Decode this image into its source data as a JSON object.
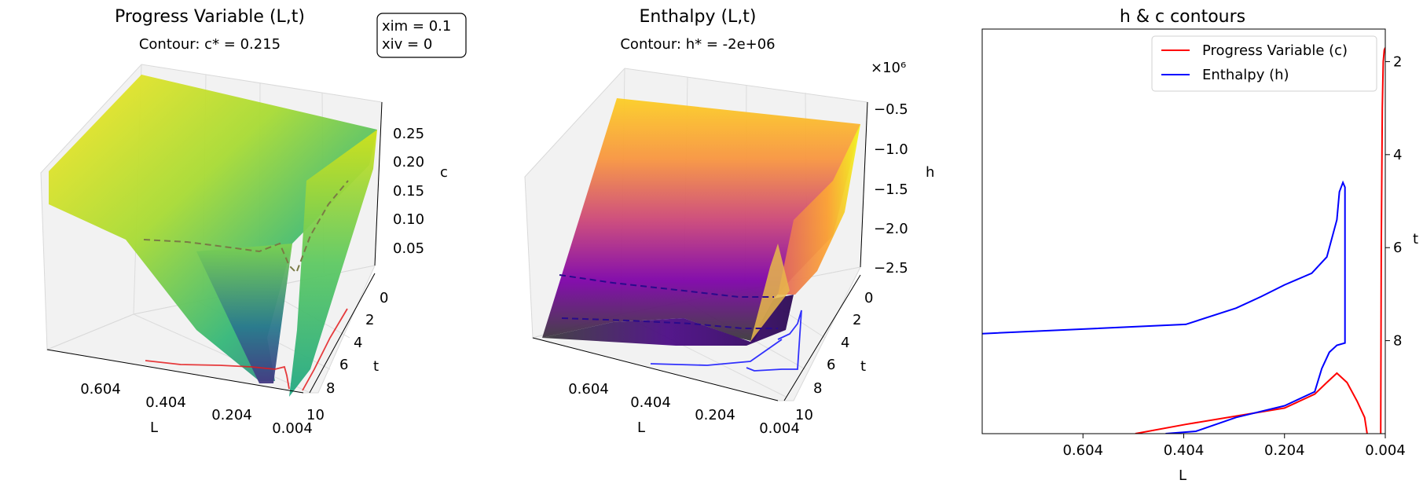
{
  "chart_data": [
    {
      "type": "surface3d",
      "title": "Progress Variable (L,t)",
      "subtitle": "Contour: c* = 0.215",
      "annotation": [
        "xim = 0.1",
        "xiv = 0"
      ],
      "xlabel": "L",
      "ylabel": "t",
      "zlabel": "c",
      "xticks": [
        "0.604",
        "0.404",
        "0.204",
        "0.004"
      ],
      "yticks": [
        "0",
        "2",
        "4",
        "6",
        "8",
        "10"
      ],
      "zticks": [
        "0.05",
        "0.10",
        "0.15",
        "0.20",
        "0.25"
      ],
      "colormap": "viridis",
      "contour_color": "#e41a1c"
    },
    {
      "type": "surface3d",
      "title": "Enthalpy (L,t)",
      "subtitle": "Contour: h* = -2e+06",
      "xlabel": "L",
      "ylabel": "t",
      "zlabel": "h",
      "offset_text": "×10⁶",
      "xticks": [
        "0.604",
        "0.404",
        "0.204",
        "0.004"
      ],
      "yticks": [
        "0",
        "2",
        "4",
        "6",
        "8",
        "10"
      ],
      "zticks": [
        "−0.5",
        "−1.0",
        "−1.5",
        "−2.0",
        "−2.5"
      ],
      "colormap": "plasma",
      "contour_color": "#0000ff"
    },
    {
      "type": "line",
      "title": "h & c contours",
      "xlabel": "L",
      "ylabel": "t",
      "xlim": [
        0.804,
        0.004
      ],
      "ylim": [
        10,
        1.3
      ],
      "xticks": [
        0.604,
        0.404,
        0.204,
        0.004
      ],
      "xtick_labels": [
        "0.604",
        "0.404",
        "0.204",
        "0.004"
      ],
      "yticks": [
        2,
        4,
        6,
        8
      ],
      "ytick_labels": [
        "2",
        "4",
        "6",
        "8"
      ],
      "legend_position": "top-right",
      "series": [
        {
          "name": "Progress Variable (c)",
          "color": "#ff0000",
          "segments": [
            [
              [
                0.5,
                10
              ],
              [
                0.4,
                9.8
              ],
              [
                0.204,
                9.45
              ],
              [
                0.144,
                9.15
              ],
              [
                0.12,
                8.9
              ],
              [
                0.1,
                8.7
              ],
              [
                0.08,
                8.9
              ],
              [
                0.06,
                9.3
              ],
              [
                0.045,
                9.65
              ],
              [
                0.04,
                10
              ]
            ],
            [
              [
                0.013,
                10
              ],
              [
                0.012,
                6
              ],
              [
                0.01,
                3
              ],
              [
                0.008,
                2
              ],
              [
                0.006,
                1.75
              ],
              [
                0.004,
                1.7
              ]
            ]
          ]
        },
        {
          "name": "Enthalpy (h)",
          "color": "#0000ff",
          "segments": [
            [
              [
                0.804,
                7.85
              ],
              [
                0.4,
                7.65
              ],
              [
                0.3,
                7.3
              ],
              [
                0.25,
                7.05
              ],
              [
                0.204,
                6.8
              ],
              [
                0.15,
                6.55
              ],
              [
                0.12,
                6.2
              ],
              [
                0.1,
                5.4
              ],
              [
                0.095,
                4.8
              ],
              [
                0.088,
                4.6
              ],
              [
                0.084,
                4.7
              ],
              [
                0.084,
                6.1
              ],
              [
                0.084,
                7.4
              ],
              [
                0.084,
                8.05
              ],
              [
                0.1,
                8.1
              ],
              [
                0.115,
                8.25
              ],
              [
                0.13,
                8.6
              ],
              [
                0.144,
                9.1
              ],
              [
                0.204,
                9.4
              ],
              [
                0.3,
                9.65
              ],
              [
                0.38,
                9.95
              ],
              [
                0.44,
                10
              ]
            ]
          ]
        }
      ]
    }
  ]
}
